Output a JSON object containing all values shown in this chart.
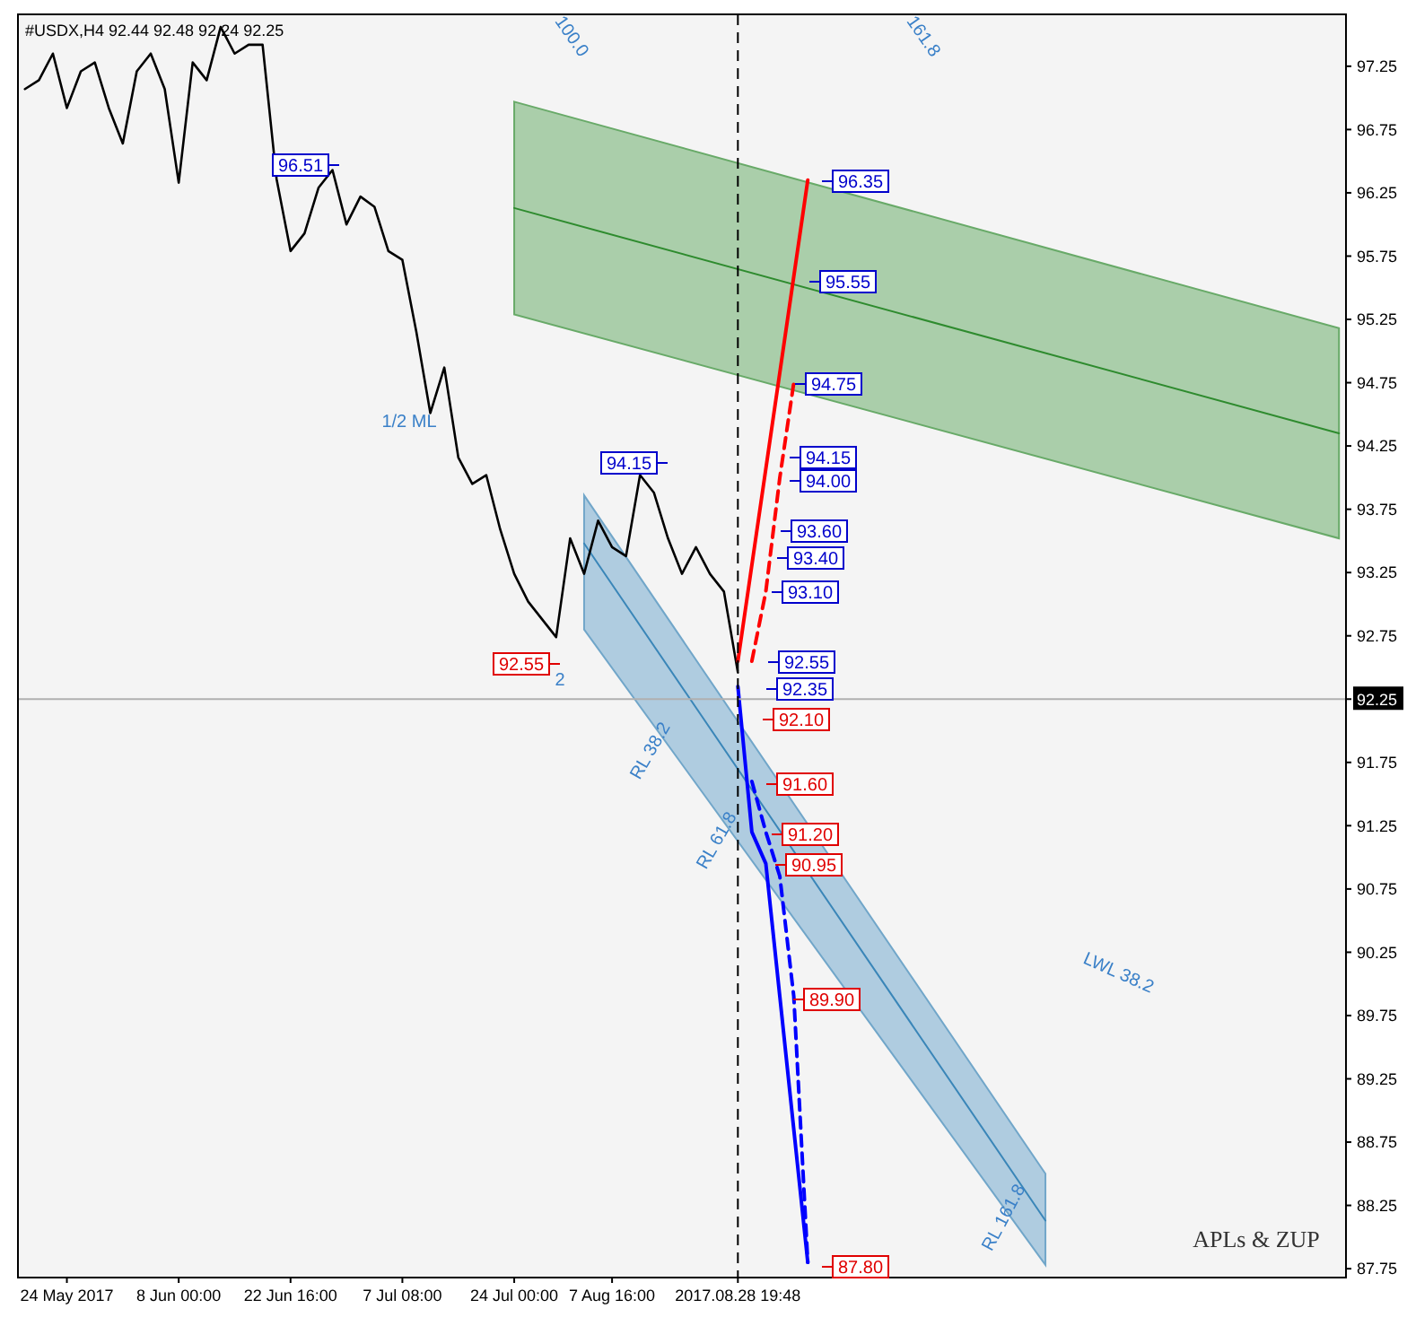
{
  "chart_data": {
    "type": "line",
    "title": "#USDX,H4  92.44 92.48 92.24 92.25",
    "categories": [
      null,
      null,
      null,
      "24 May 2017",
      null,
      null,
      null,
      null,
      null,
      null,
      null,
      "8 Jun 00:00",
      null,
      null,
      null,
      null,
      null,
      null,
      null,
      "22 Jun 16:00",
      null,
      null,
      null,
      null,
      null,
      null,
      null,
      "7 Jul 08:00",
      null,
      null,
      null,
      null,
      null,
      null,
      null,
      "24 Jul 00:00",
      null,
      null,
      null,
      null,
      null,
      null,
      "7 Aug 16:00",
      null,
      null,
      null,
      null,
      null,
      null,
      null,
      null,
      "2017.08.28 19:48",
      null,
      null,
      null,
      null,
      null,
      null,
      null,
      null,
      null,
      null,
      null,
      null,
      null,
      null,
      null,
      null,
      null,
      null,
      null,
      null,
      null,
      null,
      null,
      null,
      null,
      null,
      null,
      null,
      null,
      null,
      null,
      null,
      null,
      null,
      null,
      null,
      null,
      null,
      null,
      null,
      null,
      null,
      null
    ],
    "ylim": [
      87.68,
      97.66
    ],
    "yticks": [
      87.75,
      88.25,
      88.75,
      89.25,
      89.75,
      90.25,
      90.75,
      91.25,
      91.75,
      92.25,
      92.75,
      93.25,
      93.75,
      94.25,
      94.75,
      95.25,
      95.75,
      96.25,
      96.75,
      97.25
    ],
    "series": [
      {
        "type": "line",
        "color": "#2e8b2e",
        "values": [
          null,
          null,
          null,
          null,
          null,
          null,
          null,
          null,
          null,
          null,
          null,
          null,
          null,
          null,
          null,
          null,
          null,
          null,
          null,
          null,
          null,
          null,
          null,
          null,
          null,
          null,
          null,
          null,
          null,
          null,
          null,
          null,
          null,
          null,
          null,
          96.13,
          null,
          null,
          null,
          null,
          null,
          null,
          null,
          null,
          null,
          null,
          null,
          null,
          null,
          null,
          null,
          null,
          null,
          null,
          null,
          null,
          null,
          null,
          null,
          null,
          null,
          null,
          null,
          null,
          null,
          null,
          null,
          null,
          null,
          null,
          null,
          null,
          null,
          null,
          null,
          null,
          null,
          null,
          null,
          null,
          null,
          null,
          null,
          null,
          null,
          null,
          null,
          null,
          null,
          null,
          null,
          null,
          null,
          null,
          94.35
        ],
        "lower": [
          null,
          null,
          null,
          null,
          null,
          null,
          null,
          null,
          null,
          null,
          null,
          null,
          null,
          null,
          null,
          null,
          null,
          null,
          null,
          null,
          null,
          null,
          null,
          null,
          null,
          null,
          null,
          null,
          null,
          null,
          null,
          null,
          null,
          null,
          null,
          95.29,
          null,
          null,
          null,
          null,
          null,
          null,
          null,
          null,
          null,
          null,
          null,
          null,
          null,
          null,
          null,
          null,
          null,
          null,
          null,
          null,
          null,
          null,
          null,
          null,
          null,
          null,
          null,
          null,
          null,
          null,
          null,
          null,
          null,
          null,
          null,
          null,
          null,
          null,
          null,
          null,
          null,
          null,
          null,
          null,
          null,
          null,
          null,
          null,
          null,
          null,
          null,
          null,
          null,
          null,
          null,
          null,
          null,
          null,
          93.52
        ],
        "upper": [
          null,
          null,
          null,
          null,
          null,
          null,
          null,
          null,
          null,
          null,
          null,
          null,
          null,
          null,
          null,
          null,
          null,
          null,
          null,
          null,
          null,
          null,
          null,
          null,
          null,
          null,
          null,
          null,
          null,
          null,
          null,
          null,
          null,
          null,
          null,
          96.97,
          null,
          null,
          null,
          null,
          null,
          null,
          null,
          null,
          null,
          null,
          null,
          null,
          null,
          null,
          null,
          null,
          null,
          null,
          null,
          null,
          null,
          null,
          null,
          null,
          null,
          null,
          null,
          null,
          null,
          null,
          null,
          null,
          null,
          null,
          null,
          null,
          null,
          null,
          null,
          null,
          null,
          null,
          null,
          null,
          null,
          null,
          null,
          null,
          null,
          null,
          null,
          null,
          null,
          null,
          null,
          null,
          null,
          null,
          95.18
        ]
      },
      {
        "type": "line",
        "color": "#3a86b8",
        "values": [
          null,
          null,
          null,
          null,
          null,
          null,
          null,
          null,
          null,
          null,
          null,
          null,
          null,
          null,
          null,
          null,
          null,
          null,
          null,
          null,
          null,
          null,
          null,
          null,
          null,
          null,
          null,
          null,
          null,
          null,
          null,
          null,
          null,
          null,
          null,
          null,
          null,
          null,
          null,
          null,
          93.48,
          null,
          null,
          null,
          null,
          null,
          null,
          null,
          null,
          null,
          null,
          null,
          null,
          null,
          null,
          null,
          null,
          null,
          null,
          null,
          null,
          null,
          null,
          null,
          null,
          null,
          null,
          null,
          null,
          null,
          null,
          null,
          null,
          88.13,
          null,
          null,
          null,
          null,
          null,
          null,
          null,
          null,
          null,
          null,
          null,
          null,
          null,
          null,
          null,
          null,
          null,
          null,
          null,
          null,
          null
        ],
        "lower": [
          null,
          null,
          null,
          null,
          null,
          null,
          null,
          null,
          null,
          null,
          null,
          null,
          null,
          null,
          null,
          null,
          null,
          null,
          null,
          null,
          null,
          null,
          null,
          null,
          null,
          null,
          null,
          null,
          null,
          null,
          null,
          null,
          null,
          null,
          null,
          null,
          null,
          null,
          null,
          null,
          92.8,
          null,
          null,
          null,
          null,
          null,
          null,
          null,
          null,
          null,
          null,
          null,
          null,
          null,
          null,
          null,
          null,
          null,
          null,
          null,
          null,
          null,
          null,
          null,
          null,
          null,
          null,
          null,
          null,
          null,
          null,
          null,
          null,
          87.78,
          null,
          null,
          null,
          null,
          null,
          null,
          null,
          null,
          null,
          null,
          null,
          null,
          null,
          null,
          null,
          null,
          null,
          null,
          null,
          null,
          null
        ],
        "upper": [
          null,
          null,
          null,
          null,
          null,
          null,
          null,
          null,
          null,
          null,
          null,
          null,
          null,
          null,
          null,
          null,
          null,
          null,
          null,
          null,
          null,
          null,
          null,
          null,
          null,
          null,
          null,
          null,
          null,
          null,
          null,
          null,
          null,
          null,
          null,
          null,
          null,
          null,
          null,
          null,
          93.86,
          null,
          null,
          null,
          null,
          null,
          null,
          null,
          null,
          null,
          null,
          null,
          null,
          null,
          null,
          null,
          null,
          null,
          null,
          null,
          null,
          null,
          null,
          null,
          null,
          null,
          null,
          null,
          null,
          null,
          null,
          null,
          null,
          88.5,
          null,
          null,
          null,
          null,
          null,
          null,
          null,
          null,
          null,
          null,
          null,
          null,
          null,
          null,
          null,
          null,
          null,
          null,
          null,
          null,
          null
        ]
      },
      {
        "color": "#000000",
        "values": [
          97.07,
          97.14,
          97.35,
          96.92,
          97.21,
          97.28,
          96.92,
          96.64,
          97.21,
          97.35,
          97.07,
          96.33,
          97.28,
          97.14,
          97.56,
          97.35,
          97.42,
          97.42,
          96.36,
          95.79,
          95.93,
          96.29,
          96.43,
          96.0,
          96.22,
          96.14,
          95.79,
          95.72,
          95.15,
          94.51,
          94.87,
          94.16,
          93.95,
          94.02,
          93.59,
          93.24,
          93.02,
          92.88,
          92.74,
          93.52,
          93.24,
          93.66,
          93.45,
          93.38,
          94.02,
          93.88,
          93.52,
          93.24,
          93.45,
          93.24,
          93.1,
          92.46,
          null,
          null,
          null,
          null,
          null,
          null,
          null,
          null,
          null,
          null,
          null,
          null,
          null,
          null,
          null,
          null,
          null,
          null,
          null,
          null,
          null,
          null,
          null,
          null,
          null,
          null,
          null,
          null,
          null,
          null,
          null,
          null,
          null,
          null,
          null,
          null,
          null,
          null,
          null,
          null,
          null,
          null,
          null
        ]
      },
      {
        "color": "#ff0000",
        "values": [
          null,
          null,
          null,
          null,
          null,
          null,
          null,
          null,
          null,
          null,
          null,
          null,
          null,
          null,
          null,
          null,
          null,
          null,
          null,
          null,
          null,
          null,
          null,
          null,
          null,
          null,
          null,
          null,
          null,
          null,
          null,
          null,
          null,
          null,
          null,
          null,
          null,
          null,
          null,
          null,
          null,
          null,
          null,
          null,
          null,
          null,
          null,
          null,
          null,
          null,
          null,
          92.55,
          null,
          null,
          null,
          null,
          96.35,
          null,
          null,
          null,
          null,
          null,
          null,
          null,
          null,
          null,
          null,
          null,
          null,
          null,
          null,
          null,
          null,
          null,
          null,
          null,
          null,
          null,
          null,
          null,
          null,
          null,
          null,
          null,
          null,
          null,
          null,
          null,
          null,
          null,
          null,
          null,
          null,
          null,
          null
        ]
      },
      {
        "color": "#ff0000",
        "line_style": "dashed",
        "values": [
          null,
          null,
          null,
          null,
          null,
          null,
          null,
          null,
          null,
          null,
          null,
          null,
          null,
          null,
          null,
          null,
          null,
          null,
          null,
          null,
          null,
          null,
          null,
          null,
          null,
          null,
          null,
          null,
          null,
          null,
          null,
          null,
          null,
          null,
          null,
          null,
          null,
          null,
          null,
          null,
          null,
          null,
          null,
          null,
          null,
          null,
          null,
          null,
          null,
          null,
          null,
          null,
          92.55,
          93.1,
          94.0,
          94.75,
          null,
          null,
          null,
          null,
          null,
          null,
          null,
          null,
          null,
          null,
          null,
          null,
          null,
          null,
          null,
          null,
          null,
          null,
          null,
          null,
          null,
          null,
          null,
          null,
          null,
          null,
          null,
          null,
          null,
          null,
          null,
          null,
          null,
          null,
          null,
          null,
          null,
          null,
          null
        ]
      },
      {
        "color": "#0000ff",
        "values": [
          null,
          null,
          null,
          null,
          null,
          null,
          null,
          null,
          null,
          null,
          null,
          null,
          null,
          null,
          null,
          null,
          null,
          null,
          null,
          null,
          null,
          null,
          null,
          null,
          null,
          null,
          null,
          null,
          null,
          null,
          null,
          null,
          null,
          null,
          null,
          null,
          null,
          null,
          null,
          null,
          null,
          null,
          null,
          null,
          null,
          null,
          null,
          null,
          null,
          null,
          null,
          92.35,
          91.2,
          90.95,
          89.9,
          88.85,
          87.8,
          null,
          null,
          null,
          null,
          null,
          null,
          null,
          null,
          null,
          null,
          null,
          null,
          null,
          null,
          null,
          null,
          null,
          null,
          null,
          null,
          null,
          null,
          null,
          null,
          null,
          null,
          null,
          null,
          null,
          null,
          null,
          null,
          null,
          null,
          null,
          null,
          null,
          null
        ]
      },
      {
        "color": "#0000ff",
        "line_style": "dashed",
        "values": [
          null,
          null,
          null,
          null,
          null,
          null,
          null,
          null,
          null,
          null,
          null,
          null,
          null,
          null,
          null,
          null,
          null,
          null,
          null,
          null,
          null,
          null,
          null,
          null,
          null,
          null,
          null,
          null,
          null,
          null,
          null,
          null,
          null,
          null,
          null,
          null,
          null,
          null,
          null,
          null,
          null,
          null,
          null,
          null,
          null,
          null,
          null,
          null,
          null,
          null,
          null,
          null,
          91.6,
          91.2,
          90.85,
          89.9,
          87.8,
          null,
          null,
          null,
          null,
          null,
          null,
          null,
          null,
          null,
          null,
          null,
          null,
          null,
          null,
          null,
          null,
          null,
          null,
          null,
          null,
          null,
          null,
          null,
          null,
          null,
          null,
          null,
          null,
          null,
          null,
          null,
          null,
          null,
          null,
          null,
          null,
          null,
          null
        ]
      }
    ],
    "ref_lines": [
      {
        "axis": "y",
        "value": 92.25,
        "label": "92.25",
        "color": "#b0b0b0"
      },
      {
        "axis": "x",
        "value": "2017.08.28 19:48",
        "color": "#000000",
        "line_style": "dashed"
      }
    ],
    "annotations": [
      "96.51",
      "94.15",
      "92.55",
      "96.35",
      "95.55",
      "94.75",
      "94.15",
      "94.00",
      "93.60",
      "93.40",
      "93.10",
      "92.55",
      "92.35",
      "92.10",
      "91.60",
      "91.20",
      "90.95",
      "89.90",
      "87.80",
      "2",
      "1/2 ML",
      "LWL 38.2",
      "RL 161.8",
      "RL 61.8",
      "RL 38.2",
      "100.0",
      "161.8",
      "APLs & ZUP"
    ]
  }
}
